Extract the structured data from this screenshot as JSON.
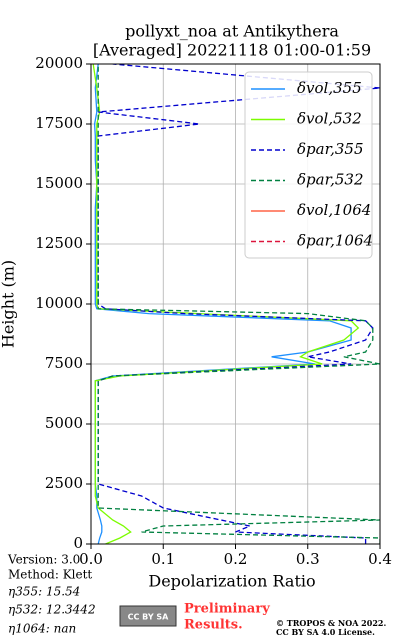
{
  "chart_data": {
    "type": "line",
    "title": "pollyxt_noa at Antikythera",
    "subtitle": "[Averaged] 20221118 01:00-01:59",
    "xlabel": "Depolarization Ratio",
    "ylabel": "Height (m)",
    "y": [
      0,
      250,
      500,
      750,
      1000,
      1500,
      2000,
      2500,
      3000,
      4000,
      5000,
      6000,
      6800,
      7000,
      7500,
      7800,
      8000,
      8500,
      9000,
      9300,
      9600,
      9800,
      10000,
      11000,
      12000,
      13000,
      14000,
      15000,
      16000,
      17000,
      17500,
      18000,
      19000,
      20000
    ],
    "series": [
      {
        "name": "δvol,355",
        "color": "#1e90ff",
        "dash": false,
        "values": [
          0.01,
          0.012,
          0.015,
          0.015,
          0.013,
          0.008,
          0.008,
          0.006,
          0.006,
          0.006,
          0.006,
          0.006,
          0.006,
          0.03,
          0.31,
          0.25,
          0.3,
          0.36,
          0.36,
          0.33,
          0.08,
          0.008,
          0.006,
          0.006,
          0.006,
          0.006,
          0.006,
          0.008,
          0.006,
          0.006,
          0.005,
          0.008,
          0.006,
          0.01
        ]
      },
      {
        "name": "δvol,532",
        "color": "#7cfc00",
        "dash": false,
        "values": [
          0.02,
          0.04,
          0.055,
          0.045,
          0.03,
          0.01,
          0.006,
          0.006,
          0.006,
          0.006,
          0.006,
          0.006,
          0.006,
          0.04,
          0.32,
          0.29,
          0.3,
          0.35,
          0.37,
          0.36,
          0.15,
          0.01,
          0.008,
          0.008,
          0.008,
          0.008,
          0.008,
          0.008,
          0.008,
          0.008,
          0.008,
          0.012,
          0.008,
          0.003
        ]
      },
      {
        "name": "δpar,355",
        "color": "#0000cd",
        "dash": true,
        "values": [
          0.38,
          0.38,
          0.2,
          0.22,
          0.18,
          0.1,
          0.07,
          0.01,
          0.01,
          0.01,
          0.01,
          0.01,
          0.01,
          0.03,
          0.36,
          0.3,
          0.33,
          0.38,
          0.39,
          0.38,
          0.13,
          0.02,
          0.01,
          0.01,
          0.01,
          0.01,
          0.01,
          0.01,
          0.01,
          0.01,
          0.15,
          0.01,
          0.4,
          0.03
        ]
      },
      {
        "name": "δpar,532",
        "color": "#008040",
        "dash": true,
        "values": [
          0.4,
          0.4,
          0.07,
          0.1,
          0.4,
          0.01,
          0.01,
          0.01,
          0.01,
          0.01,
          0.01,
          0.01,
          0.01,
          0.03,
          0.4,
          0.35,
          0.38,
          0.39,
          0.39,
          0.38,
          0.3,
          0.01,
          0.01,
          0.01,
          0.01,
          0.01,
          0.01,
          0.01,
          0.01,
          0.01,
          0.01,
          0.01,
          0.01,
          0.01
        ]
      },
      {
        "name": "δvol,1064",
        "color": "#ff6347",
        "dash": false,
        "values": [
          null,
          null,
          null,
          null,
          null,
          null,
          null,
          null,
          null,
          null,
          null,
          null,
          null,
          null,
          null,
          null,
          null,
          null,
          null,
          null,
          null,
          null,
          null,
          null,
          null,
          null,
          null,
          null,
          null,
          null,
          null,
          null,
          null,
          null
        ]
      },
      {
        "name": "δpar,1064",
        "color": "#dc143c",
        "dash": true,
        "values": [
          null,
          null,
          null,
          null,
          null,
          null,
          null,
          null,
          null,
          null,
          null,
          null,
          null,
          null,
          null,
          null,
          null,
          null,
          null,
          null,
          null,
          null,
          null,
          null,
          null,
          null,
          null,
          null,
          null,
          null,
          null,
          null,
          null,
          null
        ]
      }
    ],
    "xlim": [
      0,
      0.4
    ],
    "xticks": [
      {
        "value": 0,
        "label": "0.0"
      },
      0.1,
      0.2,
      0.3,
      0.4
    ],
    "ylim": [
      0,
      20000
    ],
    "yticks": [
      0,
      2500,
      5000,
      7500,
      10000,
      12500,
      15000,
      17500,
      20000
    ],
    "grid": true,
    "legend": "upper right"
  },
  "info": [
    "Version: 3.0",
    "Method: Klett",
    "η355:  15.54",
    "η532: 12.3442",
    "η1064:    nan"
  ],
  "logo": "CC BY SA",
  "preliminary": [
    "Preliminary",
    "Results."
  ],
  "copyright": [
    "© TROPOS & NOA 2022.",
    "CC BY SA 4.0 License."
  ]
}
